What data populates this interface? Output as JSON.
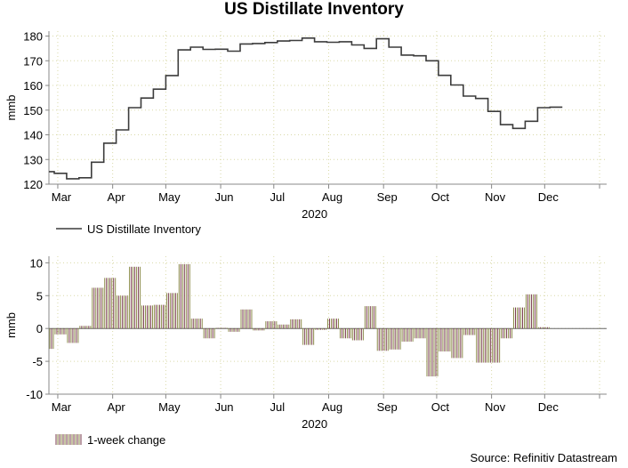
{
  "title": "US Distillate Inventory",
  "source": "Source: Refinitiv Datastream",
  "chart_data": [
    {
      "type": "line",
      "ylabel": "mmb",
      "xlabel": "2020",
      "ylim": [
        120,
        182
      ],
      "yticks": [
        120,
        130,
        140,
        150,
        160,
        170,
        180
      ],
      "xlim": [
        "2020-02-25",
        "2021-01-05"
      ],
      "month_labels": [
        "Mar",
        "Apr",
        "May",
        "Jun",
        "Jul",
        "Aug",
        "Sep",
        "Oct",
        "Nov",
        "Dec"
      ],
      "grid": true,
      "legend_placement": "bottom-left",
      "colors": {
        "line": "#3c3c3c"
      },
      "series": [
        {
          "name": "US Distillate Inventory",
          "style": "step",
          "x": [
            "2020-02-21",
            "2020-02-28",
            "2020-03-06",
            "2020-03-13",
            "2020-03-20",
            "2020-03-27",
            "2020-04-03",
            "2020-04-10",
            "2020-04-17",
            "2020-04-24",
            "2020-05-01",
            "2020-05-08",
            "2020-05-15",
            "2020-05-22",
            "2020-05-29",
            "2020-06-05",
            "2020-06-12",
            "2020-06-19",
            "2020-06-26",
            "2020-07-03",
            "2020-07-10",
            "2020-07-17",
            "2020-07-24",
            "2020-07-31",
            "2020-08-07",
            "2020-08-14",
            "2020-08-21",
            "2020-08-28",
            "2020-09-04",
            "2020-09-11",
            "2020-09-18",
            "2020-09-25",
            "2020-10-02",
            "2020-10-09",
            "2020-10-16",
            "2020-10-23",
            "2020-10-30",
            "2020-11-06",
            "2020-11-13",
            "2020-11-20",
            "2020-11-27",
            "2020-12-04"
          ],
          "values": [
            125.1,
            124.4,
            122.2,
            122.6,
            128.9,
            136.6,
            142.0,
            151.0,
            154.9,
            158.5,
            164.0,
            174.4,
            175.5,
            174.6,
            174.7,
            173.9,
            176.8,
            177.0,
            177.4,
            178.0,
            178.2,
            179.2,
            177.7,
            177.5,
            177.7,
            176.4,
            175.0,
            178.9,
            175.5,
            172.3,
            172.0,
            170.0,
            164.1,
            160.2,
            155.7,
            154.7,
            149.5,
            144.1,
            142.6,
            145.5,
            151.0,
            151.2
          ]
        }
      ]
    },
    {
      "type": "bar",
      "ylabel": "mmb",
      "xlabel": "2020",
      "ylim": [
        -10,
        11
      ],
      "yticks": [
        -10,
        -5,
        0,
        5,
        10
      ],
      "xlim": [
        "2020-02-25",
        "2021-01-05"
      ],
      "month_labels": [
        "Mar",
        "Apr",
        "May",
        "Jun",
        "Jul",
        "Aug",
        "Sep",
        "Oct",
        "Nov",
        "Dec"
      ],
      "grid": true,
      "legend_placement": "bottom-left",
      "colors": {
        "bar_a": "#7a3b4f",
        "bar_b": "#8c8c4a"
      },
      "series": [
        {
          "name": "1-week change",
          "x": [
            "2020-02-28",
            "2020-03-06",
            "2020-03-13",
            "2020-03-20",
            "2020-03-27",
            "2020-04-03",
            "2020-04-10",
            "2020-04-17",
            "2020-04-24",
            "2020-05-01",
            "2020-05-08",
            "2020-05-15",
            "2020-05-22",
            "2020-05-29",
            "2020-06-05",
            "2020-06-12",
            "2020-06-19",
            "2020-06-26",
            "2020-07-03",
            "2020-07-10",
            "2020-07-17",
            "2020-07-24",
            "2020-07-31",
            "2020-08-07",
            "2020-08-14",
            "2020-08-21",
            "2020-08-28",
            "2020-09-04",
            "2020-09-11",
            "2020-09-18",
            "2020-09-25",
            "2020-10-02",
            "2020-10-09",
            "2020-10-16",
            "2020-10-23",
            "2020-10-30",
            "2020-11-06",
            "2020-11-13",
            "2020-11-20",
            "2020-11-27",
            "2020-12-04"
          ],
          "values": [
            -3.1,
            -0.9,
            -2.2,
            0.4,
            6.2,
            7.7,
            5.0,
            9.4,
            3.5,
            3.6,
            5.4,
            9.8,
            1.5,
            -1.5,
            0.1,
            -0.5,
            2.9,
            -0.3,
            1.1,
            0.6,
            1.4,
            -2.5,
            -0.2,
            1.5,
            -1.5,
            -1.8,
            3.4,
            -3.4,
            -3.2,
            -2.0,
            -1.5,
            -7.3,
            -3.5,
            -4.5,
            -1.0,
            -5.2,
            -5.2,
            -1.5,
            3.2,
            5.2,
            0.2
          ]
        }
      ]
    }
  ]
}
